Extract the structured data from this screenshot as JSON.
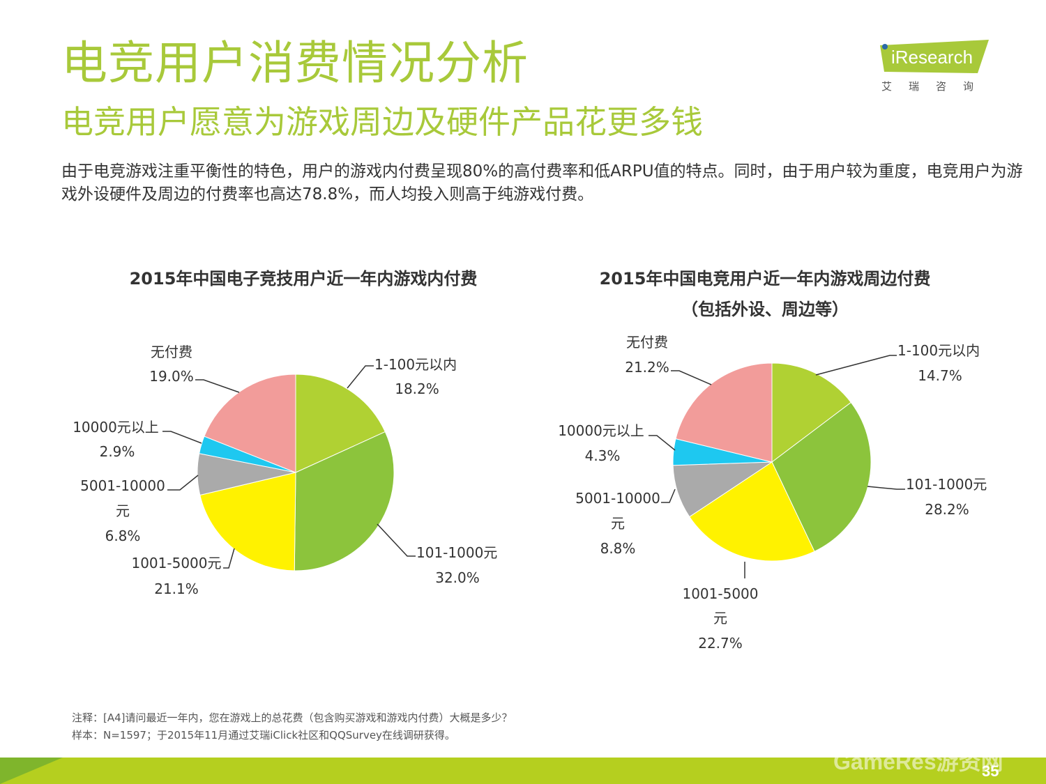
{
  "header": {
    "title": "电竞用户消费情况分析",
    "subtitle": "电竞用户愿意为游戏周边及硬件产品花更多钱",
    "description": "由于电竞游戏注重平衡性的特色，用户的游戏内付费呈现80%的高付费率和低ARPU值的特点。同时，由于用户较为重度，电竞用户为游戏外设硬件及周边的付费率也高达78.8%，而人均投入则高于纯游戏付费。"
  },
  "logo": {
    "brand": "iResearch",
    "cn": "艾瑞咨询"
  },
  "colors": {
    "accent": "#a8c93a",
    "slice_1_100": "#b0d133",
    "slice_101_1000": "#8cc43c",
    "slice_1001_5000": "#fff200",
    "slice_5001_10000": "#aaaaaa",
    "slice_10000_plus": "#1ec8f0",
    "slice_none": "#f29c9a",
    "footer": "#b5cf1f"
  },
  "chart_data": [
    {
      "type": "pie",
      "title": "2015年中国电子竞技用户近一年内游戏内付费",
      "slices": [
        {
          "label": "1-100元以内",
          "value": 18.2,
          "display": "18.2%",
          "color": "#b0d133"
        },
        {
          "label": "101-1000元",
          "value": 32.0,
          "display": "32.0%",
          "color": "#8cc43c"
        },
        {
          "label": "1001-5000元",
          "value": 21.1,
          "display": "21.1%",
          "color": "#fff200"
        },
        {
          "label": "5001-10000元",
          "value": 6.8,
          "display": "6.8%",
          "color": "#aaaaaa"
        },
        {
          "label": "10000元以上",
          "value": 2.9,
          "display": "2.9%",
          "color": "#1ec8f0"
        },
        {
          "label": "无付费",
          "value": 19.0,
          "display": "19.0%",
          "color": "#f29c9a"
        }
      ]
    },
    {
      "type": "pie",
      "title": "2015年中国电竞用户近一年内游戏周边付费",
      "title_line2": "（包括外设、周边等）",
      "slices": [
        {
          "label": "1-100元以内",
          "value": 14.7,
          "display": "14.7%",
          "color": "#b0d133"
        },
        {
          "label": "101-1000元",
          "value": 28.2,
          "display": "28.2%",
          "color": "#8cc43c"
        },
        {
          "label": "1001-5000元",
          "value": 22.7,
          "display": "22.7%",
          "color": "#fff200"
        },
        {
          "label": "5001-10000元",
          "value": 8.8,
          "display": "8.8%",
          "color": "#aaaaaa"
        },
        {
          "label": "10000元以上",
          "value": 4.3,
          "display": "4.3%",
          "color": "#1ec8f0"
        },
        {
          "label": "无付费",
          "value": 21.2,
          "display": "21.2%",
          "color": "#f29c9a"
        }
      ]
    }
  ],
  "notes": {
    "note": "注释：[A4]请问最近一年内，您在游戏上的总花费（包含购买游戏和游戏内付费）大概是多少？",
    "sample": "样本：N=1597；于2015年11月通过艾瑞iClick社区和QQSurvey在线调研获得。"
  },
  "footer": {
    "watermark": "GameRes游资网",
    "page_number": "35"
  }
}
